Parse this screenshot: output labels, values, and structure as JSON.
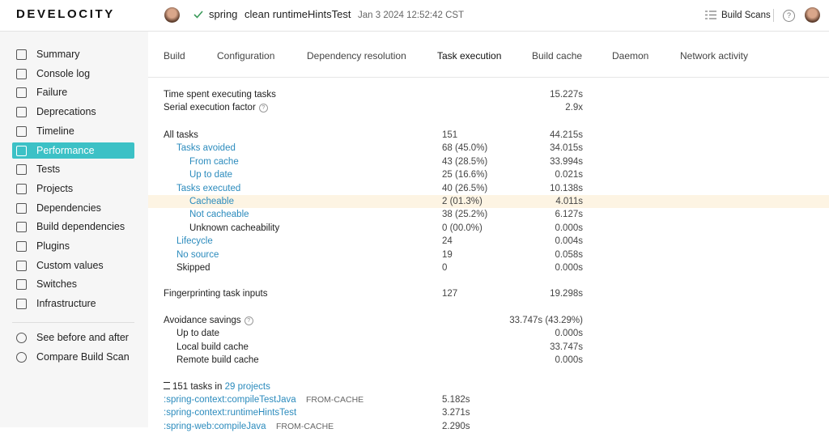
{
  "header": {
    "logo": "DEVELOCITY",
    "project": "spring",
    "tasks": "clean runtimeHintsTest",
    "date": "Jan 3 2024 12:52:42 CST",
    "build_scans": "Build Scans"
  },
  "sidebar": {
    "items": [
      "Summary",
      "Console log",
      "Failure",
      "Deprecations",
      "Timeline",
      "Performance",
      "Tests",
      "Projects",
      "Dependencies",
      "Build dependencies",
      "Plugins",
      "Custom values",
      "Switches",
      "Infrastructure"
    ],
    "active": "Performance",
    "secondary": [
      "See before and after",
      "Compare Build Scan"
    ]
  },
  "tabs": {
    "items": [
      "Build",
      "Configuration",
      "Dependency resolution",
      "Task execution",
      "Build cache",
      "Daemon",
      "Network activity"
    ],
    "active": "Task execution"
  },
  "sections": [
    {
      "rows": [
        {
          "label": "Time spent executing tasks",
          "level": 0,
          "time": "15.227s"
        },
        {
          "label": "Serial execution factor",
          "level": 0,
          "time": "2.9x",
          "help": true
        }
      ]
    },
    {
      "rows": [
        {
          "label": "All tasks",
          "level": 0,
          "count": "151",
          "time": "44.215s"
        },
        {
          "label": "Tasks avoided",
          "level": 1,
          "link": true,
          "count": "68 (45.0%)",
          "time": "34.015s"
        },
        {
          "label": "From cache",
          "level": 2,
          "link": true,
          "count": "43 (28.5%)",
          "time": "33.994s"
        },
        {
          "label": "Up to date",
          "level": 2,
          "link": true,
          "count": "25 (16.6%)",
          "time": "0.021s"
        },
        {
          "label": "Tasks executed",
          "level": 1,
          "link": true,
          "count": "40 (26.5%)",
          "time": "10.138s"
        },
        {
          "label": "Cacheable",
          "level": 2,
          "link": true,
          "highlight": true,
          "count": "2 (01.3%)",
          "time": "4.011s"
        },
        {
          "label": "Not cacheable",
          "level": 2,
          "link": true,
          "count": "38 (25.2%)",
          "time": "6.127s"
        },
        {
          "label": "Unknown cacheability",
          "level": 2,
          "count": "0 (00.0%)",
          "time": "0.000s"
        },
        {
          "label": "Lifecycle",
          "level": 1,
          "link": true,
          "count": "24",
          "time": "0.004s"
        },
        {
          "label": "No source",
          "level": 1,
          "link": true,
          "count": "19",
          "time": "0.058s"
        },
        {
          "label": "Skipped",
          "level": 1,
          "count": "0",
          "time": "0.000s"
        }
      ]
    },
    {
      "rows": [
        {
          "label": "Fingerprinting task inputs",
          "level": 0,
          "count": "127",
          "time": "19.298s"
        }
      ]
    },
    {
      "rows": [
        {
          "label": "Avoidance savings",
          "level": 0,
          "time": "33.747s (43.29%)",
          "help": true
        },
        {
          "label": "Up to date",
          "level": 1,
          "time": "0.000s"
        },
        {
          "label": "Local build cache",
          "level": 1,
          "time": "33.747s"
        },
        {
          "label": "Remote build cache",
          "level": 1,
          "time": "0.000s"
        }
      ]
    }
  ],
  "task_list": {
    "count_text": "151 tasks in",
    "projects_link": "29 projects",
    "tasks": [
      {
        "name": ":spring-context:compileTestJava",
        "outcome": "FROM-CACHE",
        "time": "5.182s"
      },
      {
        "name": ":spring-context:runtimeHintsTest",
        "time": "3.271s"
      },
      {
        "name": ":spring-web:compileJava",
        "outcome": "FROM-CACHE",
        "time": "2.290s"
      }
    ]
  }
}
